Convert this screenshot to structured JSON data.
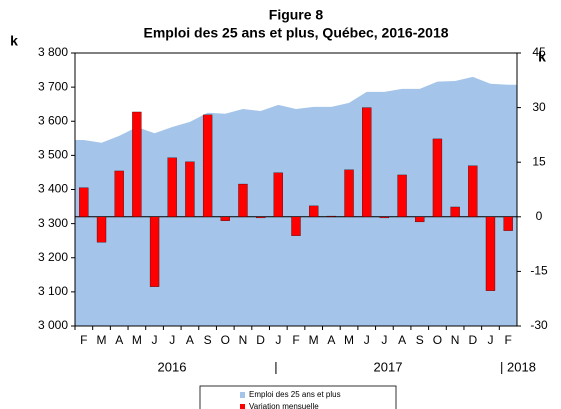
{
  "chart_data": {
    "type": "bar_area",
    "title": "Figure 8",
    "subtitle": "Emploi des 25 ans et plus, Québec, 2016-2018",
    "y_axis_label": "k",
    "y2_axis_label": "k",
    "categories": [
      "F",
      "M",
      "A",
      "M",
      "J",
      "J",
      "A",
      "S",
      "O",
      "N",
      "D",
      "J",
      "F",
      "M",
      "A",
      "M",
      "J",
      "J",
      "A",
      "S",
      "O",
      "N",
      "D",
      "J",
      "F"
    ],
    "x_group_labels": [
      "2016",
      "|",
      "2017",
      "| 2018"
    ],
    "series": [
      {
        "name": "Emploi des 25 ans et plus",
        "type": "area",
        "color": "#a4c5e9",
        "values": [
          3545,
          3537,
          3557,
          3583,
          3565,
          3583,
          3598,
          3625,
          3622,
          3636,
          3630,
          3648,
          3636,
          3642,
          3642,
          3654,
          3686,
          3686,
          3695,
          3695,
          3716,
          3718,
          3730,
          3710,
          3707
        ]
      },
      {
        "name": "Variation mensuelle",
        "type": "bar",
        "axis": "y2",
        "color": "#ff0000",
        "values": [
          8,
          -7,
          12.6,
          28.8,
          -19.2,
          16.2,
          15.1,
          28,
          -1.1,
          9,
          -0.3,
          12.1,
          -5.2,
          3,
          0.2,
          12.9,
          30,
          -0.3,
          11.5,
          -1.4,
          21.4,
          2.7,
          14,
          -20.3,
          -3.8
        ]
      }
    ],
    "ylim": [
      3000,
      3800
    ],
    "yticks": [
      {
        "value": 3000,
        "label": "3 000"
      },
      {
        "value": 3100,
        "label": "3 100"
      },
      {
        "value": 3200,
        "label": "3 200"
      },
      {
        "value": 3300,
        "label": "3 300"
      },
      {
        "value": 3400,
        "label": "3 400"
      },
      {
        "value": 3500,
        "label": "3 500"
      },
      {
        "value": 3600,
        "label": "3 600"
      },
      {
        "value": 3700,
        "label": "3 700"
      },
      {
        "value": 3800,
        "label": "3 800"
      }
    ],
    "y2lim": [
      -30,
      45
    ],
    "y2ticks": [
      -30,
      -15,
      0,
      15,
      30,
      45
    ],
    "legend": "bottom"
  }
}
